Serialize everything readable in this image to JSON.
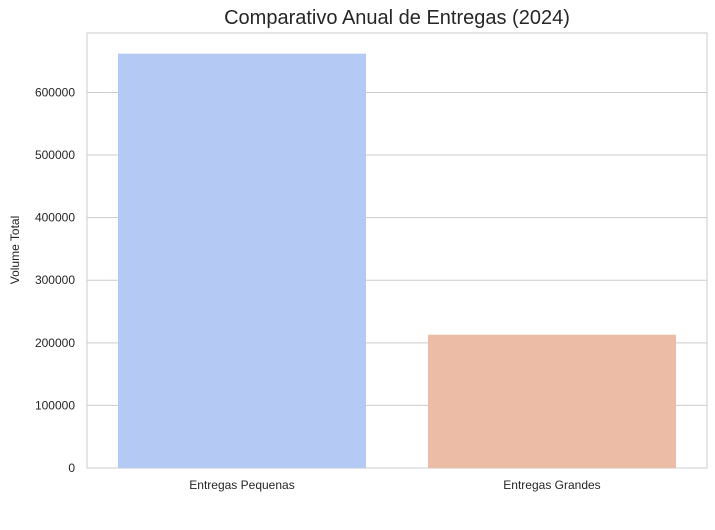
{
  "chart_data": {
    "type": "bar",
    "title": "Comparativo Anual de Entregas (2024)",
    "xlabel": "",
    "ylabel": "Volume Total",
    "categories": [
      "Entregas Pequenas",
      "Entregas Grandes"
    ],
    "values": [
      662000,
      213000
    ],
    "colors": [
      "#b5c9f5",
      "#ecbca6"
    ],
    "ylim": [
      0,
      695000
    ],
    "yticks": [
      0,
      100000,
      200000,
      300000,
      400000,
      500000,
      600000
    ],
    "ytick_labels": [
      "0",
      "100000",
      "200000",
      "300000",
      "400000",
      "500000",
      "600000"
    ],
    "grid": true,
    "legend": "none"
  }
}
